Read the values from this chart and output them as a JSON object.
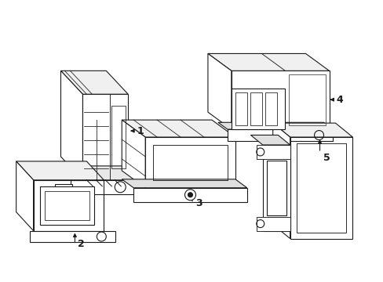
{
  "background_color": "#ffffff",
  "line_color": "#1a1a1a",
  "figsize": [
    4.89,
    3.6
  ],
  "dpi": 100
}
